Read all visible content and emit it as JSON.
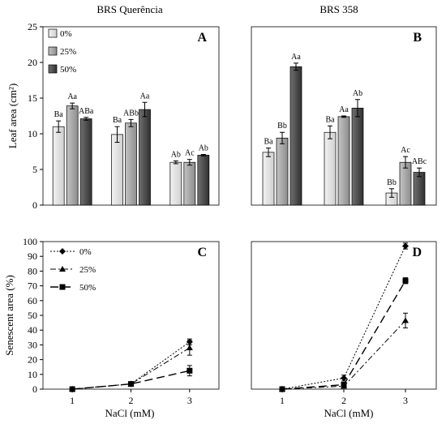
{
  "figure": {
    "titles": {
      "left": "BRS Querência",
      "right": "BRS 358"
    },
    "top_ylabel": "Leaf area (cm²)",
    "bottom_ylabel": "Senescent area (%)",
    "xlabel": "NaCl (mM)",
    "colors": {
      "s0": "#e0e0e0",
      "s25": "#a8a8a8",
      "s50": "#4f4f4f",
      "stroke": "#000000"
    }
  },
  "chart_data": [
    {
      "panel": "A",
      "type": "bar",
      "title": "BRS Querência",
      "ylabel": "Leaf area (cm²)",
      "ylim": [
        0,
        25
      ],
      "yticks": [
        0,
        5,
        10,
        15,
        20,
        25
      ],
      "grid": false,
      "legend": {
        "position": "top-left",
        "entries": [
          "0%",
          "25%",
          "50%"
        ]
      },
      "groups": 3,
      "series": [
        {
          "name": "0%",
          "values": [
            11.0,
            9.9,
            6.0
          ],
          "errors": [
            0.8,
            1.1,
            0.2
          ],
          "labels": [
            "Ba",
            "Ba",
            "Ab"
          ]
        },
        {
          "name": "25%",
          "values": [
            13.9,
            11.5,
            6.0
          ],
          "errors": [
            0.4,
            0.5,
            0.4
          ],
          "labels": [
            "Aa",
            "ABb",
            "Ac"
          ]
        },
        {
          "name": "50%",
          "values": [
            12.1,
            13.4,
            7.0
          ],
          "errors": [
            0.2,
            1.0,
            0.1
          ],
          "labels": [
            "ABa",
            "Aa",
            "Ab"
          ]
        }
      ]
    },
    {
      "panel": "B",
      "type": "bar",
      "title": "BRS 358",
      "ylim": [
        0,
        25
      ],
      "yticks": [
        0,
        5,
        10,
        15,
        20,
        25
      ],
      "grid": false,
      "groups": 3,
      "series": [
        {
          "name": "0%",
          "values": [
            7.4,
            10.2,
            1.7
          ],
          "errors": [
            0.6,
            0.9,
            0.6
          ],
          "labels": [
            "Ba",
            "Ba",
            "Bb"
          ]
        },
        {
          "name": "25%",
          "values": [
            9.4,
            12.4,
            6.0
          ],
          "errors": [
            0.8,
            0.1,
            0.8
          ],
          "labels": [
            "Bb",
            "Aa",
            "Ac"
          ]
        },
        {
          "name": "50%",
          "values": [
            19.4,
            13.6,
            4.6
          ],
          "errors": [
            0.5,
            1.2,
            0.6
          ],
          "labels": [
            "Aa",
            "Ab",
            "ABc"
          ]
        }
      ]
    },
    {
      "panel": "C",
      "type": "line",
      "ylabel": "Senescent area (%)",
      "xlabel": "NaCl (mM)",
      "x": [
        1,
        2,
        3
      ],
      "xticks": [
        1,
        2,
        3
      ],
      "ylim": [
        0,
        100
      ],
      "yticks": [
        0,
        10,
        20,
        30,
        40,
        50,
        60,
        70,
        80,
        90,
        100
      ],
      "grid": false,
      "legend": {
        "position": "top-left",
        "entries": [
          "0%",
          "25%",
          "50%"
        ]
      },
      "series": [
        {
          "name": "0%",
          "values": [
            0,
            3.5,
            32
          ],
          "errors": [
            0,
            0.5,
            2
          ]
        },
        {
          "name": "25%",
          "values": [
            0,
            3.5,
            28
          ],
          "errors": [
            0,
            0.5,
            5
          ]
        },
        {
          "name": "50%",
          "values": [
            0,
            3.5,
            12.5
          ],
          "errors": [
            0,
            0.5,
            3.5
          ]
        }
      ]
    },
    {
      "panel": "D",
      "type": "line",
      "xlabel": "NaCl (mM)",
      "x": [
        1,
        2,
        3
      ],
      "xticks": [
        1,
        2,
        3
      ],
      "ylim": [
        0,
        100
      ],
      "yticks": [
        0,
        10,
        20,
        30,
        40,
        50,
        60,
        70,
        80,
        90,
        100
      ],
      "grid": false,
      "series": [
        {
          "name": "0%",
          "values": [
            0,
            7.5,
            97
          ],
          "errors": [
            0,
            2,
            2
          ]
        },
        {
          "name": "25%",
          "values": [
            0,
            2,
            46.5
          ],
          "errors": [
            0,
            1,
            5
          ]
        },
        {
          "name": "50%",
          "values": [
            0,
            3,
            73.5
          ],
          "errors": [
            0,
            1,
            2
          ]
        }
      ]
    }
  ]
}
